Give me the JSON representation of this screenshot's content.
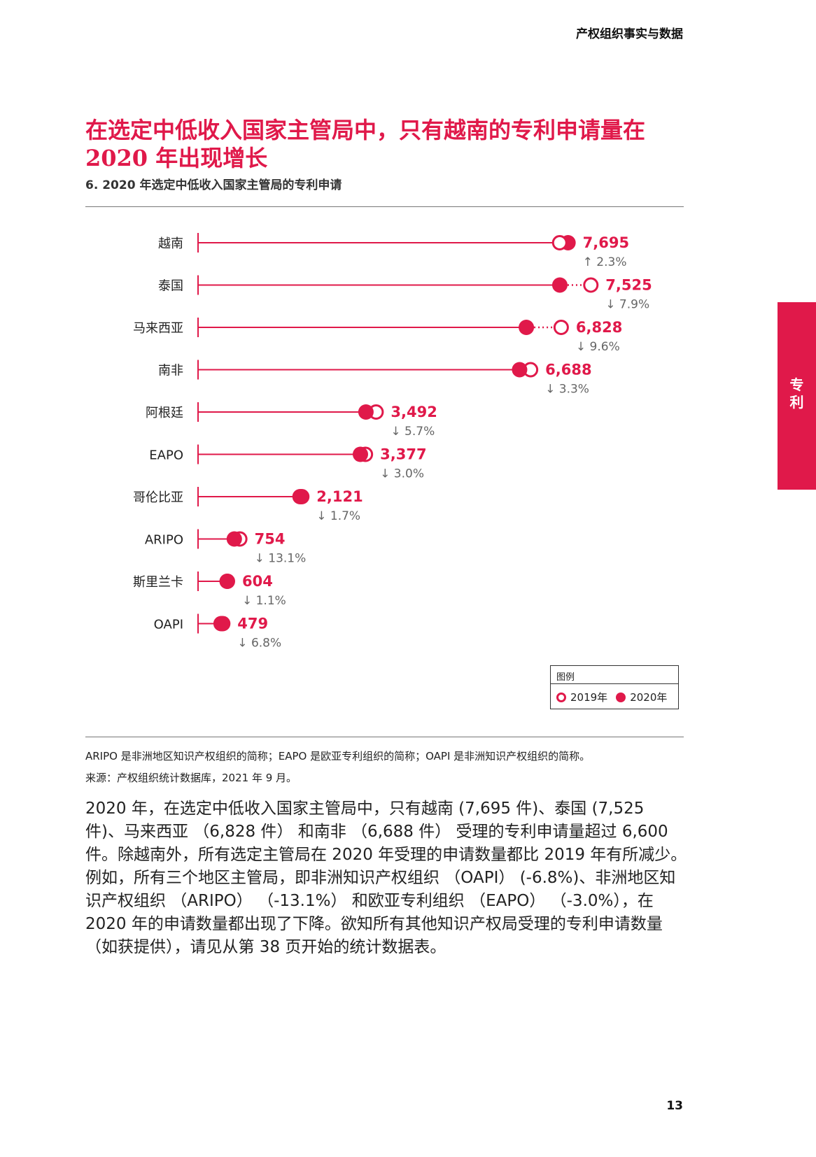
{
  "header": {
    "title": "产权组织事实与数据"
  },
  "title": "在选定中低收入国家主管局中，只有越南的专利申请量在 2020 年出现增长",
  "subtitle": "6. 2020 年选定中低收入国家主管局的专利申请",
  "chart_data": {
    "type": "dumbbell",
    "series": [
      {
        "name": "2019年",
        "marker": "open-circle"
      },
      {
        "name": "2020年",
        "marker": "filled-circle"
      }
    ],
    "rows": [
      {
        "label": "越南",
        "value_2020": 7695,
        "value_label": "7,695",
        "change_label": "↑ 2.3%",
        "value_2019": 7522
      },
      {
        "label": "泰国",
        "value_2020": 7525,
        "value_label": "7,525",
        "change_label": "↓ 7.9%",
        "value_2019": 8170
      },
      {
        "label": "马来西亚",
        "value_2020": 6828,
        "value_label": "6,828",
        "change_label": "↓ 9.6%",
        "value_2019": 7553
      },
      {
        "label": "南非",
        "value_2020": 6688,
        "value_label": "6,688",
        "change_label": "↓ 3.3%",
        "value_2019": 6916
      },
      {
        "label": "阿根廷",
        "value_2020": 3492,
        "value_label": "3,492",
        "change_label": "↓ 5.7%",
        "value_2019": 3703
      },
      {
        "label": "EAPO",
        "value_2020": 3377,
        "value_label": "3,377",
        "change_label": "↓ 3.0%",
        "value_2019": 3481
      },
      {
        "label": "哥伦比亚",
        "value_2020": 2121,
        "value_label": "2,121",
        "change_label": "↓ 1.7%",
        "value_2019": 2158
      },
      {
        "label": "ARIPO",
        "value_2020": 754,
        "value_label": "754",
        "change_label": "↓ 13.1%",
        "value_2019": 868
      },
      {
        "label": "斯里兰卡",
        "value_2020": 604,
        "value_label": "604",
        "change_label": "↓ 1.1%",
        "value_2019": 611
      },
      {
        "label": "OAPI",
        "value_2020": 479,
        "value_label": "479",
        "change_label": "↓ 6.8%",
        "value_2019": 514
      }
    ],
    "legend": {
      "title": "图例",
      "position": "bottom-right"
    },
    "colors": {
      "accent": "#e0194a",
      "change_text": "#666666",
      "label_text": "#222222"
    }
  },
  "notes": {
    "abbreviations": "ARIPO 是非洲地区知识产权组织的简称；EAPO 是欧亚专利组织的简称；OAPI 是非洲知识产权组织的简称。",
    "source": "来源：产权组织统计数据库，2021 年 9 月。"
  },
  "body_text": "2020 年，在选定中低收入国家主管局中，只有越南 (7,695 件)、泰国 (7,525 件)、马来西亚 （6,828 件） 和南非 （6,688 件） 受理的专利申请量超过 6,600 件。除越南外，所有选定主管局在 2020 年受理的申请数量都比 2019 年有所减少。例如，所有三个地区主管局，即非洲知识产权组织 （OAPI） (-6.8%)、非洲地区知识产权组织 （ARIPO） （-13.1%） 和欧亚专利组织 （EAPO） （-3.0%），在 2020 年的申请数量都出现了下降。欲知所有其他知识产权局受理的专利申请数量 （如获提供），请见从第 38 页开始的统计数据表。",
  "side_tab": {
    "label": "专利"
  },
  "page_number": "13"
}
